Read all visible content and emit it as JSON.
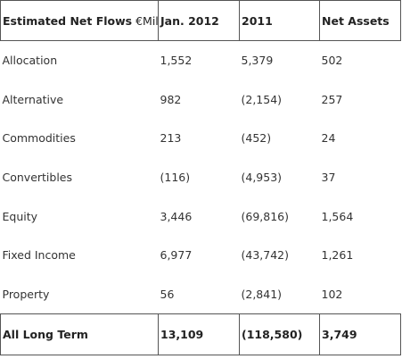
{
  "table": {
    "header": {
      "label_bold": "Estimated Net Flows",
      "label_unit": " €Mil",
      "columns": [
        "Jan. 2012",
        "2011",
        "Net Assets"
      ]
    },
    "rows": [
      {
        "category": "Allocation",
        "jan2012": "1,552",
        "y2011": "5,379",
        "net_assets": "502"
      },
      {
        "category": "Alternative",
        "jan2012": "982",
        "y2011": "(2,154)",
        "net_assets": "257"
      },
      {
        "category": "Commodities",
        "jan2012": "213",
        "y2011": "(452)",
        "net_assets": "24"
      },
      {
        "category": "Convertibles",
        "jan2012": "(116)",
        "y2011": "(4,953)",
        "net_assets": "37"
      },
      {
        "category": "Equity",
        "jan2012": "3,446",
        "y2011": "(69,816)",
        "net_assets": "1,564"
      },
      {
        "category": "Fixed Income",
        "jan2012": "6,977",
        "y2011": "(43,742)",
        "net_assets": "1,261"
      },
      {
        "category": "Property",
        "jan2012": "56",
        "y2011": "(2,841)",
        "net_assets": "102"
      }
    ],
    "total": {
      "category": "All Long Term",
      "jan2012": "13,109",
      "y2011": "(118,580)",
      "net_assets": "3,749"
    }
  }
}
